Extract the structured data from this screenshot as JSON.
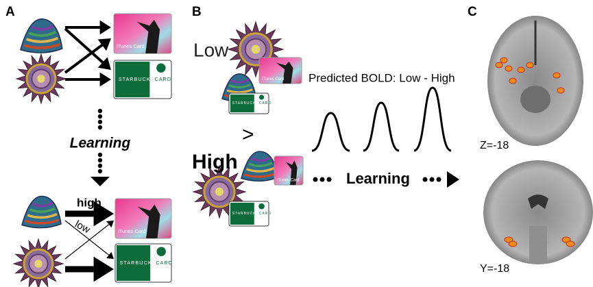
{
  "panels": {
    "a": {
      "label": "A",
      "learning": "Learning",
      "high": "high",
      "low": "low"
    },
    "b": {
      "label": "B",
      "low": "Low",
      "greater": ">",
      "high": "High",
      "predicted": "Predicted BOLD: Low - High",
      "learning": "Learning"
    },
    "c": {
      "label": "C",
      "axial": "Z=-18",
      "coronal": "Y=-18"
    }
  },
  "cards": {
    "itunes": "iTunes Card",
    "starbucks": "STARBUCKS",
    "starbucks_suffix": "CARD"
  }
}
